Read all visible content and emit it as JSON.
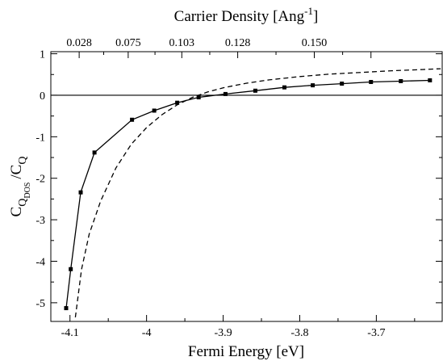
{
  "chart_data": {
    "type": "line",
    "xlabel": "Fermi Energy [eV]",
    "x2label": "Carrier Density [Ang",
    "x2label_sup": "-1",
    "x2label_end": "]",
    "ylabel": {
      "base1": "C",
      "sub1": "Q",
      "subsub1": "DOS",
      "sep": "/",
      "base2": "C",
      "sub2": "Q"
    },
    "xlim": [
      -4.125,
      -3.614
    ],
    "ylim": [
      -5.45,
      1.05
    ],
    "x_ticks": [
      -4.1,
      -4.0,
      -3.9,
      -3.8,
      -3.7
    ],
    "x_tick_labels": [
      "-4.1",
      "-4",
      "-3.9",
      "-3.8",
      "-3.7"
    ],
    "y_ticks": [
      -5,
      -4,
      -3,
      -2,
      -1,
      0,
      1
    ],
    "y_tick_labels": [
      "-5",
      "-4",
      "-3",
      "-2",
      "-1",
      "0",
      "1"
    ],
    "top_ticks": [
      -4.088,
      -4.024,
      -3.954,
      -3.881,
      -3.781,
      -3.707
    ],
    "top_tick_labels": [
      "0.028",
      "0.075",
      "0.103",
      "0.128",
      "0.150",
      ""
    ],
    "top_tick_label_display": [
      {
        "x": -4.088,
        "label": "0.028"
      },
      {
        "x": -4.024,
        "label": "0.075"
      },
      {
        "x": -3.954,
        "label": "0.103"
      },
      {
        "x": -3.881,
        "label": "0.128"
      },
      {
        "x": -3.781,
        "label": "0.150"
      }
    ],
    "reference_line_y": 0,
    "series": [
      {
        "style": "solid-with-square-markers",
        "color": "#000000",
        "x": [
          -4.105,
          -4.099,
          -4.086,
          -4.068,
          -4.019,
          -3.99,
          -3.96,
          -3.932,
          -3.897,
          -3.858,
          -3.82,
          -3.783,
          -3.745,
          -3.707,
          -3.668,
          -3.63
        ],
        "y": [
          -5.13,
          -4.19,
          -2.34,
          -1.38,
          -0.59,
          -0.37,
          -0.18,
          -0.05,
          0.03,
          0.11,
          0.19,
          0.24,
          0.28,
          0.32,
          0.34,
          0.36
        ]
      },
      {
        "style": "dashed",
        "color": "#000000",
        "x": [
          -4.093,
          -4.085,
          -4.075,
          -4.06,
          -4.04,
          -4.02,
          -4.0,
          -3.98,
          -3.96,
          -3.94,
          -3.92,
          -3.9,
          -3.87,
          -3.84,
          -3.8,
          -3.76,
          -3.72,
          -3.68,
          -3.64,
          -3.616
        ],
        "y": [
          -5.35,
          -4.2,
          -3.35,
          -2.55,
          -1.75,
          -1.18,
          -0.78,
          -0.47,
          -0.23,
          -0.05,
          0.08,
          0.18,
          0.29,
          0.37,
          0.45,
          0.51,
          0.55,
          0.59,
          0.62,
          0.64
        ]
      }
    ]
  }
}
